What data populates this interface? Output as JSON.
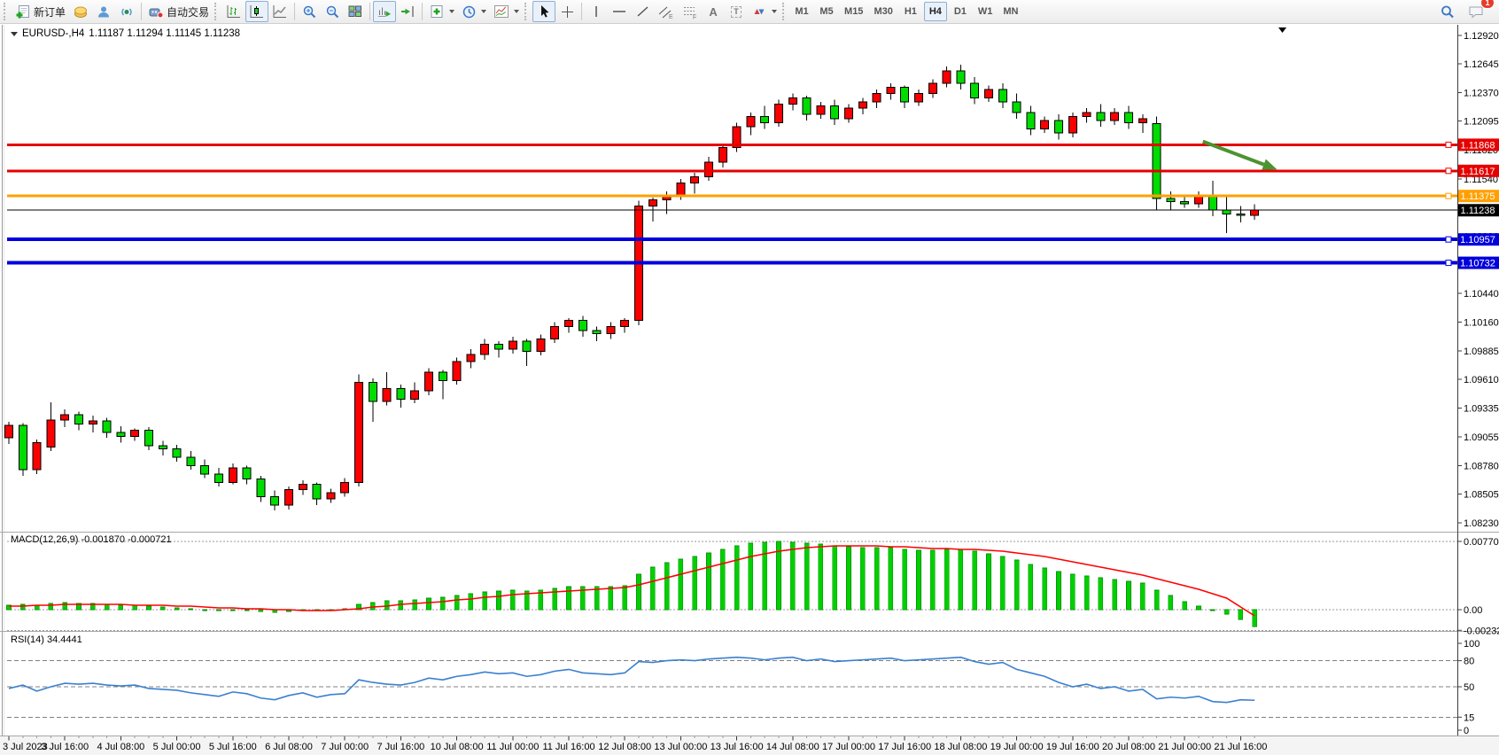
{
  "toolbar": {
    "new_order_label": "新订单",
    "autotrading_label": "自动交易",
    "timeframes": [
      "M1",
      "M5",
      "M15",
      "M30",
      "H1",
      "H4",
      "D1",
      "W1",
      "MN"
    ],
    "active_timeframe": "H4",
    "notification_badge": "1",
    "icon_glyphs": {
      "text": "A",
      "text_label": "T",
      "channel": "E",
      "fibo": "F"
    }
  },
  "chart": {
    "symbol_period": "EURUSD-,H4",
    "ohlc_line": "1.11187 1.11294 1.11145 1.11238",
    "macd_label": "MACD(12,26,9) -0.001870 -0.000721",
    "rsi_label": "RSI(14) 34.4441"
  },
  "chart_data": [
    {
      "type": "candlestick",
      "title": "EURUSD- H4",
      "bull_color": "#fb0000",
      "bear_color": "#00dc00",
      "wick_color": "#000000",
      "ylim": [
        1.08143,
        1.13022
      ],
      "y_ticks": [
        "1.12920",
        "1.12645",
        "1.12370",
        "1.12095",
        "1.11820",
        "1.11540",
        "1.11265",
        "1.10990",
        "1.10715",
        "1.10440",
        "1.10160",
        "1.09885",
        "1.09610",
        "1.09335",
        "1.09055",
        "1.08780",
        "1.08505",
        "1.08230"
      ],
      "x_labels": [
        [
          0,
          "3 Jul 2023"
        ],
        [
          4,
          "3 Jul 16:00"
        ],
        [
          8,
          "4 Jul 08:00"
        ],
        [
          12,
          "5 Jul 00:00"
        ],
        [
          16,
          "5 Jul 16:00"
        ],
        [
          20,
          "6 Jul 08:00"
        ],
        [
          24,
          "7 Jul 00:00"
        ],
        [
          28,
          "7 Jul 16:00"
        ],
        [
          32,
          "10 Jul 08:00"
        ],
        [
          36,
          "11 Jul 00:00"
        ],
        [
          40,
          "11 Jul 16:00"
        ],
        [
          44,
          "12 Jul 08:00"
        ],
        [
          48,
          "13 Jul 00:00"
        ],
        [
          52,
          "13 Jul 16:00"
        ],
        [
          56,
          "14 Jul 08:00"
        ],
        [
          60,
          "17 Jul 00:00"
        ],
        [
          64,
          "17 Jul 16:00"
        ],
        [
          68,
          "18 Jul 08:00"
        ],
        [
          72,
          "19 Jul 00:00"
        ],
        [
          76,
          "19 Jul 16:00"
        ],
        [
          80,
          "20 Jul 08:00"
        ],
        [
          84,
          "21 Jul 00:00"
        ],
        [
          88,
          "21 Jul 16:00"
        ]
      ],
      "candles": [
        [
          1.0905,
          1.092,
          1.0899,
          1.0917
        ],
        [
          1.0917,
          1.0919,
          1.0868,
          1.0874
        ],
        [
          1.0874,
          1.0903,
          1.087,
          1.09
        ],
        [
          1.0896,
          1.0939,
          1.0892,
          1.0922
        ],
        [
          1.0922,
          1.0932,
          1.0915,
          1.0927
        ],
        [
          1.0927,
          1.093,
          1.0912,
          1.0918
        ],
        [
          1.0918,
          1.0926,
          1.091,
          1.0921
        ],
        [
          1.0921,
          1.0924,
          1.0905,
          1.091
        ],
        [
          1.091,
          1.0916,
          1.09,
          1.0906
        ],
        [
          1.0906,
          1.0914,
          1.0902,
          1.0912
        ],
        [
          1.0912,
          1.0915,
          1.0893,
          1.0897
        ],
        [
          1.0897,
          1.0902,
          1.0888,
          1.0894
        ],
        [
          1.0894,
          1.0898,
          1.0882,
          1.0886
        ],
        [
          1.0886,
          1.0892,
          1.0874,
          1.0878
        ],
        [
          1.0878,
          1.0884,
          1.0866,
          1.087
        ],
        [
          1.087,
          1.0876,
          1.0858,
          1.0862
        ],
        [
          1.0862,
          1.088,
          1.086,
          1.0876
        ],
        [
          1.0876,
          1.0878,
          1.086,
          1.0865
        ],
        [
          1.0865,
          1.0868,
          1.0843,
          1.0848
        ],
        [
          1.0848,
          1.0854,
          1.0835,
          1.084
        ],
        [
          1.084,
          1.0858,
          1.0836,
          1.0855
        ],
        [
          1.0855,
          1.0864,
          1.085,
          1.086
        ],
        [
          1.086,
          1.0862,
          1.084,
          1.0846
        ],
        [
          1.0846,
          1.0856,
          1.0842,
          1.0852
        ],
        [
          1.0852,
          1.0866,
          1.0848,
          1.0862
        ],
        [
          1.0862,
          1.0966,
          1.0858,
          1.0958
        ],
        [
          1.0958,
          1.0962,
          1.092,
          1.094
        ],
        [
          1.094,
          1.0968,
          1.0936,
          1.0952
        ],
        [
          1.0952,
          1.0956,
          1.0934,
          1.0942
        ],
        [
          1.0942,
          1.0958,
          1.0938,
          1.095
        ],
        [
          1.095,
          1.0972,
          1.0946,
          1.0968
        ],
        [
          1.0968,
          1.097,
          1.0942,
          1.096
        ],
        [
          1.096,
          1.0982,
          1.0956,
          1.0978
        ],
        [
          1.0978,
          1.099,
          1.0972,
          1.0985
        ],
        [
          1.0985,
          1.1,
          1.098,
          1.0995
        ],
        [
          1.0995,
          1.0998,
          1.0982,
          1.099
        ],
        [
          1.099,
          1.1002,
          1.0986,
          1.0998
        ],
        [
          1.0998,
          1.1,
          1.0974,
          1.0988
        ],
        [
          1.0988,
          1.1004,
          1.0984,
          1.1
        ],
        [
          1.1,
          1.1016,
          1.0996,
          1.1012
        ],
        [
          1.1012,
          1.102,
          1.1006,
          1.1018
        ],
        [
          1.1018,
          1.1022,
          1.1002,
          1.1008
        ],
        [
          1.1008,
          1.1012,
          1.0998,
          1.1005
        ],
        [
          1.1005,
          1.1016,
          1.1,
          1.1012
        ],
        [
          1.1012,
          1.102,
          1.1006,
          1.1018
        ],
        [
          1.1018,
          1.1133,
          1.1013,
          1.1128
        ],
        [
          1.1128,
          1.1136,
          1.1113,
          1.1134
        ],
        [
          1.1134,
          1.1142,
          1.112,
          1.1138
        ],
        [
          1.1138,
          1.1154,
          1.1134,
          1.115
        ],
        [
          1.115,
          1.116,
          1.114,
          1.1156
        ],
        [
          1.1156,
          1.1175,
          1.1152,
          1.117
        ],
        [
          1.117,
          1.1188,
          1.1165,
          1.1184
        ],
        [
          1.1184,
          1.1208,
          1.118,
          1.1204
        ],
        [
          1.1204,
          1.1218,
          1.1196,
          1.1214
        ],
        [
          1.1214,
          1.1224,
          1.1202,
          1.1208
        ],
        [
          1.1208,
          1.123,
          1.1204,
          1.1226
        ],
        [
          1.1226,
          1.1236,
          1.122,
          1.1232
        ],
        [
          1.1232,
          1.1234,
          1.121,
          1.1216
        ],
        [
          1.1216,
          1.1228,
          1.1212,
          1.1224
        ],
        [
          1.1224,
          1.123,
          1.1206,
          1.1212
        ],
        [
          1.1212,
          1.1226,
          1.1208,
          1.1222
        ],
        [
          1.1222,
          1.1232,
          1.1216,
          1.1228
        ],
        [
          1.1228,
          1.124,
          1.1222,
          1.1236
        ],
        [
          1.1236,
          1.1246,
          1.123,
          1.1242
        ],
        [
          1.1242,
          1.1244,
          1.1222,
          1.1228
        ],
        [
          1.1228,
          1.124,
          1.1224,
          1.1236
        ],
        [
          1.1236,
          1.125,
          1.1232,
          1.1246
        ],
        [
          1.1246,
          1.1262,
          1.1242,
          1.1258
        ],
        [
          1.1258,
          1.1264,
          1.124,
          1.1246
        ],
        [
          1.1246,
          1.1252,
          1.1226,
          1.1232
        ],
        [
          1.1232,
          1.1244,
          1.1228,
          1.124
        ],
        [
          1.124,
          1.1246,
          1.1222,
          1.1228
        ],
        [
          1.1228,
          1.1236,
          1.1212,
          1.1218
        ],
        [
          1.1218,
          1.1224,
          1.1196,
          1.1202
        ],
        [
          1.1202,
          1.1214,
          1.1198,
          1.121
        ],
        [
          1.121,
          1.1216,
          1.1192,
          1.1198
        ],
        [
          1.1198,
          1.1218,
          1.1194,
          1.1214
        ],
        [
          1.1214,
          1.1222,
          1.1208,
          1.1218
        ],
        [
          1.1218,
          1.1226,
          1.1204,
          1.121
        ],
        [
          1.121,
          1.1222,
          1.1206,
          1.1218
        ],
        [
          1.1218,
          1.1224,
          1.1202,
          1.1208
        ],
        [
          1.1208,
          1.1216,
          1.1198,
          1.1212
        ],
        [
          1.1207,
          1.1214,
          1.1124,
          1.1135
        ],
        [
          1.1135,
          1.1142,
          1.1124,
          1.1132
        ],
        [
          1.1132,
          1.1138,
          1.1126,
          1.113
        ],
        [
          1.113,
          1.1142,
          1.1126,
          1.1138
        ],
        [
          1.1138,
          1.1152,
          1.1118,
          1.1124
        ],
        [
          1.1124,
          1.1138,
          1.1102,
          1.112
        ],
        [
          1.112,
          1.1128,
          1.1112,
          1.1119
        ],
        [
          1.11187,
          1.11294,
          1.11145,
          1.11238
        ]
      ],
      "hlines": [
        {
          "price": 1.11868,
          "label": "1.11868",
          "color": "#e60000",
          "width": 3
        },
        {
          "price": 1.11617,
          "label": "1.11617",
          "color": "#e60000",
          "width": 3
        },
        {
          "price": 1.11375,
          "label": "1.11375",
          "color": "#ffa000",
          "width": 3
        },
        {
          "price": 1.10957,
          "label": "1.10957",
          "color": "#0000dc",
          "width": 4
        },
        {
          "price": 1.10732,
          "label": "1.10732",
          "color": "#0000dc",
          "width": 4
        }
      ],
      "current_price": {
        "value": 1.11238,
        "label": "1.11238",
        "color": "#000000"
      },
      "trend_arrow": {
        "from_index": 85.3,
        "from_price": 1.119,
        "to_index": 90.6,
        "to_price": 1.1163,
        "color": "#4d9331"
      }
    },
    {
      "type": "bar",
      "name": "MACD",
      "params": "12,26,9",
      "value_display": "-0.001870",
      "signal_display": "-0.000721",
      "bar_color": "#00d000",
      "signal_color": "#ff0000",
      "ylim": [
        -0.002326,
        0.007705
      ],
      "y_ticks": [
        "0.007705",
        "0.00",
        "-0.002326"
      ],
      "values": [
        0.0005,
        0.0006,
        0.0005,
        0.0007,
        0.0008,
        0.0007,
        0.0007,
        0.0006,
        0.0005,
        0.0005,
        0.0004,
        0.0003,
        0.0002,
        0.0001,
        0.0,
        -0.0001,
        0.0,
        0.0,
        -0.0002,
        -0.0003,
        -0.0002,
        0.0,
        -0.0001,
        0.0,
        0.0001,
        0.0006,
        0.0008,
        0.001,
        0.001,
        0.0011,
        0.0013,
        0.0014,
        0.0016,
        0.0018,
        0.002,
        0.0021,
        0.0022,
        0.0021,
        0.0022,
        0.0024,
        0.0026,
        0.0026,
        0.0026,
        0.0026,
        0.0027,
        0.004,
        0.0048,
        0.0053,
        0.0057,
        0.006,
        0.0064,
        0.0068,
        0.0072,
        0.0075,
        0.0076,
        0.0077,
        0.0076,
        0.0075,
        0.0074,
        0.0072,
        0.0071,
        0.007,
        0.007,
        0.007,
        0.0068,
        0.0067,
        0.0067,
        0.0068,
        0.0068,
        0.0066,
        0.0063,
        0.006,
        0.0056,
        0.0051,
        0.0047,
        0.0043,
        0.004,
        0.0038,
        0.0036,
        0.0034,
        0.0032,
        0.003,
        0.0022,
        0.0016,
        0.0009,
        0.0004,
        0.0,
        -0.0005,
        -0.0011,
        -0.0019
      ],
      "signal": [
        0.0004,
        0.0004,
        0.0005,
        0.0005,
        0.0006,
        0.0006,
        0.0006,
        0.0006,
        0.0006,
        0.0005,
        0.0005,
        0.0005,
        0.0004,
        0.0004,
        0.0003,
        0.0002,
        0.0002,
        0.0001,
        0.0001,
        0.0,
        0.0,
        -0.0001,
        -0.0001,
        -0.0001,
        0.0,
        0.0001,
        0.0003,
        0.0004,
        0.0006,
        0.0007,
        0.0008,
        0.0009,
        0.0011,
        0.0012,
        0.0014,
        0.0015,
        0.0017,
        0.0018,
        0.0019,
        0.002,
        0.0021,
        0.0022,
        0.0023,
        0.0024,
        0.0025,
        0.0028,
        0.0032,
        0.0036,
        0.004,
        0.0044,
        0.0048,
        0.0052,
        0.0056,
        0.006,
        0.0063,
        0.0066,
        0.0068,
        0.007,
        0.0071,
        0.0072,
        0.0072,
        0.0072,
        0.0072,
        0.0071,
        0.0071,
        0.007,
        0.0069,
        0.0069,
        0.0068,
        0.0068,
        0.0067,
        0.0066,
        0.0064,
        0.0062,
        0.006,
        0.0057,
        0.0054,
        0.0051,
        0.0048,
        0.0045,
        0.0042,
        0.0039,
        0.0035,
        0.0031,
        0.0027,
        0.0023,
        0.0018,
        0.0013,
        0.0003,
        -0.0007
      ]
    },
    {
      "type": "line",
      "name": "RSI",
      "params": "14",
      "value_display": "34.4441",
      "line_color": "#3a80cf",
      "ylim": [
        0,
        100
      ],
      "levels": [
        80,
        50,
        15
      ],
      "y_ticks": [
        "100",
        "80",
        "50",
        "15",
        "0"
      ],
      "values": [
        48,
        52,
        45,
        50,
        54,
        53,
        54,
        52,
        51,
        52,
        48,
        47,
        46,
        43,
        41,
        39,
        44,
        42,
        37,
        35,
        40,
        43,
        38,
        41,
        42,
        58,
        55,
        53,
        52,
        55,
        60,
        58,
        62,
        64,
        67,
        65,
        66,
        62,
        64,
        68,
        70,
        66,
        65,
        64,
        66,
        79,
        78,
        80,
        81,
        80,
        82,
        83,
        84,
        83,
        81,
        83,
        84,
        80,
        82,
        79,
        80,
        81,
        82,
        83,
        80,
        81,
        82,
        83,
        84,
        79,
        76,
        78,
        70,
        66,
        62,
        55,
        50,
        53,
        48,
        50,
        45,
        47,
        36,
        38,
        37,
        39,
        33,
        32,
        35,
        34.44
      ]
    }
  ]
}
